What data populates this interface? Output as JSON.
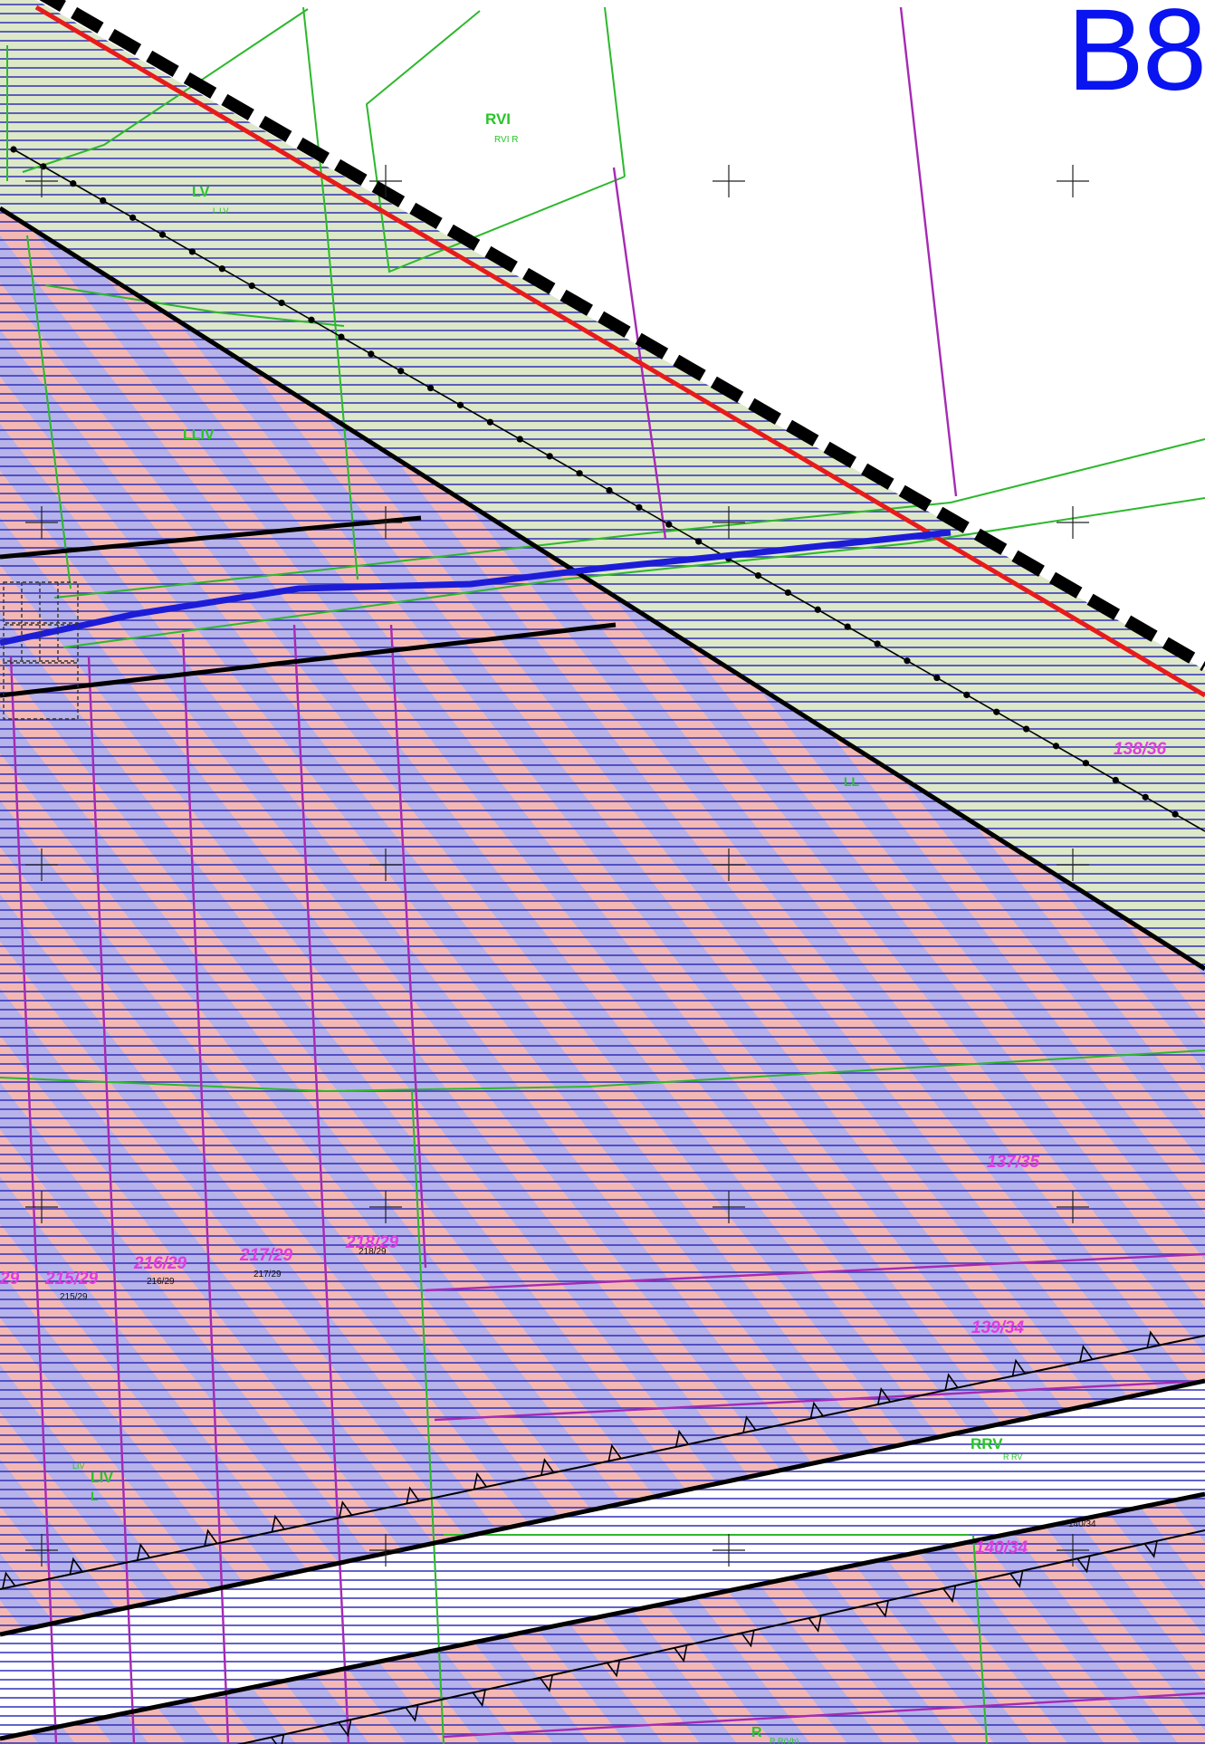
{
  "sheet": {
    "id": "B8"
  },
  "colors": {
    "sheet_label": "#0a14f0",
    "band_hatch_lines": "#2f2fb8",
    "stripe_pink": "#f4b8b4",
    "stripe_lilac": "#b6b2ea",
    "green_zone_fill": "#dde8c8",
    "parcel_boundary": "#a62ab4",
    "soil_boundary": "#2cb82c",
    "cut_line": "#e81b1b",
    "blue_polyline": "#1c1cd8",
    "label_magenta": "#e03ce0",
    "label_green": "#27c527"
  },
  "labels": {
    "soil_rvi": "RVI",
    "soil_rvi_small": "RVI   R",
    "soil_lv": "LV",
    "soil_lv_small": "L     LV",
    "soil_lliv": "LLIV",
    "soil_ll": "LL",
    "soil_rrv": "RRV",
    "soil_rrv_small": "R     RV",
    "soil_liv": "LIV",
    "soil_liv_small": "LIV",
    "soil_l": "L",
    "soil_r": "R",
    "soil_r_small": "R      R(Vb)",
    "parcel_138_36": "138/36",
    "parcel_137_35": "137/35",
    "parcel_139_34": "139/34",
    "parcel_140_34": "140/34",
    "parcel_140_34_small": "140/34",
    "parcel_215_29": "215/29",
    "parcel_215_29_small": "215/29",
    "parcel_216_29": "216/29",
    "parcel_216_29_small": "216/29",
    "parcel_217_29": "217/29",
    "parcel_217_29_small": "217/29",
    "parcel_218_29": "218/29",
    "parcel_218_29_small": "218/29",
    "parcel_edge_29": "29"
  }
}
